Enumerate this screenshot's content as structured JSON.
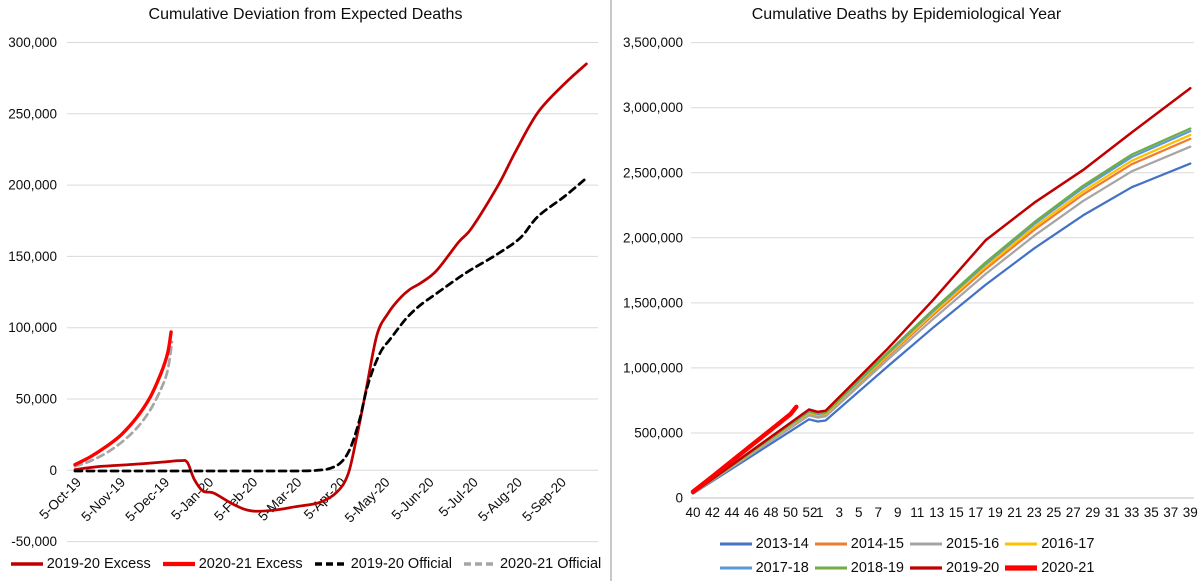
{
  "chart_data": [
    {
      "type": "line",
      "title": "Cumulative Deviation from Expected Deaths",
      "xlabel": "",
      "ylabel": "",
      "ylim": [
        -50000,
        300000
      ],
      "xlim_months_from_5_Oct_19": [
        0,
        11.6
      ],
      "grid": true,
      "legend_position": "bottom",
      "x_tick_labels": [
        "5-Oct-19",
        "5-Nov-19",
        "5-Dec-19",
        "5-Jan-20",
        "5-Feb-20",
        "5-Mar-20",
        "5-Apr-20",
        "5-May-20",
        "5-Jun-20",
        "5-Jul-20",
        "5-Aug-20",
        "5-Sep-20"
      ],
      "y_ticks": [
        {
          "label": "300,000",
          "value": 300000
        },
        {
          "label": "250,000",
          "value": 250000
        },
        {
          "label": "200,000",
          "value": 200000
        },
        {
          "label": "150,000",
          "value": 150000
        },
        {
          "label": "100,000",
          "value": 100000
        },
        {
          "label": "50,000",
          "value": 50000
        },
        {
          "label": "0",
          "value": 0
        },
        {
          "label": "-50,000",
          "value": -50000
        }
      ],
      "series": [
        {
          "name": "2019-20 Excess",
          "color": "#C00000",
          "width": 2.75,
          "dash": "",
          "smooth": true,
          "points": [
            [
              0,
              500
            ],
            [
              0.5,
              2500
            ],
            [
              1,
              3500
            ],
            [
              1.6,
              4800
            ],
            [
              2,
              5800
            ],
            [
              2.4,
              6800
            ],
            [
              2.55,
              5500
            ],
            [
              2.7,
              -6000
            ],
            [
              2.9,
              -14500
            ],
            [
              3.15,
              -16000
            ],
            [
              3.6,
              -24000
            ],
            [
              4,
              -28500
            ],
            [
              4.5,
              -28000
            ],
            [
              5,
              -25500
            ],
            [
              5.55,
              -22500
            ],
            [
              5.95,
              -15000
            ],
            [
              6.2,
              -2000
            ],
            [
              6.4,
              25000
            ],
            [
              6.6,
              56000
            ],
            [
              6.85,
              95000
            ],
            [
              7.1,
              110000
            ],
            [
              7.35,
              120000
            ],
            [
              7.6,
              127000
            ],
            [
              7.85,
              131500
            ],
            [
              8.2,
              140000
            ],
            [
              8.7,
              160000
            ],
            [
              9,
              170000
            ],
            [
              9.6,
              200000
            ],
            [
              10,
              224000
            ],
            [
              10.5,
              251000
            ],
            [
              11.1,
              271000
            ],
            [
              11.6,
              285000
            ]
          ]
        },
        {
          "name": "2020-21 Excess",
          "color": "#FF0000",
          "width": 3.4,
          "dash": "",
          "smooth": true,
          "points": [
            [
              0,
              4000
            ],
            [
              0.35,
              9500
            ],
            [
              0.7,
              16500
            ],
            [
              1.05,
              25000
            ],
            [
              1.4,
              37000
            ],
            [
              1.7,
              51000
            ],
            [
              1.95,
              68000
            ],
            [
              2.1,
              82000
            ],
            [
              2.18,
              97000
            ]
          ]
        },
        {
          "name": "2019-20 Official",
          "color": "#000000",
          "width": 2.75,
          "dash": "7 5",
          "smooth": true,
          "points": [
            [
              0,
              -500
            ],
            [
              1,
              -500
            ],
            [
              2,
              -500
            ],
            [
              3,
              -500
            ],
            [
              4,
              -500
            ],
            [
              5,
              -500
            ],
            [
              5.5,
              0
            ],
            [
              5.8,
              1500
            ],
            [
              6.05,
              6000
            ],
            [
              6.25,
              16000
            ],
            [
              6.45,
              35000
            ],
            [
              6.6,
              55000
            ],
            [
              6.75,
              70000
            ],
            [
              6.95,
              84000
            ],
            [
              7.15,
              92000
            ],
            [
              7.5,
              106000
            ],
            [
              7.8,
              115000
            ],
            [
              8.2,
              124000
            ],
            [
              8.7,
              135000
            ],
            [
              9,
              141000
            ],
            [
              9.6,
              152000
            ],
            [
              10.1,
              163000
            ],
            [
              10.5,
              178000
            ],
            [
              11.1,
              192000
            ],
            [
              11.6,
              205000
            ]
          ]
        },
        {
          "name": "2020-21 Official",
          "color": "#A6A6A6",
          "width": 2.75,
          "dash": "7 5",
          "smooth": true,
          "points": [
            [
              0,
              2800
            ],
            [
              0.35,
              6500
            ],
            [
              0.7,
              12000
            ],
            [
              1.05,
              19500
            ],
            [
              1.4,
              29500
            ],
            [
              1.7,
              42000
            ],
            [
              1.95,
              57000
            ],
            [
              2.1,
              70000
            ],
            [
              2.2,
              90000
            ]
          ]
        }
      ]
    },
    {
      "type": "line",
      "title": "Cumulative Deaths by Epidemiological Year",
      "xlabel": "",
      "ylabel": "",
      "ylim": [
        0,
        3500000
      ],
      "x_axis_weeks": "epidemiological weeks 40 through 39",
      "grid": true,
      "legend_position": "bottom",
      "x_tick_labels": [
        "40",
        "42",
        "44",
        "46",
        "48",
        "50",
        "52",
        "1",
        "3",
        "5",
        "7",
        "9",
        "11",
        "13",
        "15",
        "17",
        "19",
        "21",
        "23",
        "25",
        "27",
        "29",
        "31",
        "33",
        "35",
        "37",
        "39"
      ],
      "x_tick_positions": [
        0,
        2,
        4,
        6,
        8,
        10,
        12,
        13,
        15,
        17,
        19,
        21,
        23,
        25,
        27,
        29,
        31,
        33,
        35,
        37,
        39,
        41,
        43,
        45,
        47,
        49,
        51
      ],
      "y_ticks": [
        {
          "label": "3,500,000",
          "value": 3500000
        },
        {
          "label": "3,000,000",
          "value": 3000000
        },
        {
          "label": "2,500,000",
          "value": 2500000
        },
        {
          "label": "2,000,000",
          "value": 2000000
        },
        {
          "label": "1,500,000",
          "value": 1500000
        },
        {
          "label": "1,000,000",
          "value": 1000000
        },
        {
          "label": "500,000",
          "value": 500000
        },
        {
          "label": "0",
          "value": 0
        }
      ],
      "series": [
        {
          "name": "2013-14",
          "color": "#4472C4",
          "width": 2.25,
          "dash": "",
          "smooth": false,
          "points": [
            [
              0,
              34000
            ],
            [
              11.9,
              605000
            ],
            [
              12.8,
              588000
            ],
            [
              13.6,
              596000
            ],
            [
              20,
              1014000
            ],
            [
              24.6,
              1308000
            ],
            [
              30,
              1638000
            ],
            [
              35,
              1919000
            ],
            [
              40,
              2172000
            ],
            [
              45,
              2389000
            ],
            [
              51,
              2570000
            ]
          ]
        },
        {
          "name": "2014-15",
          "color": "#ED7D31",
          "width": 2.25,
          "dash": "",
          "smooth": false,
          "points": [
            [
              0,
              36000
            ],
            [
              11.9,
              649000
            ],
            [
              12.8,
              632000
            ],
            [
              13.6,
              641000
            ],
            [
              20,
              1089000
            ],
            [
              24.6,
              1405000
            ],
            [
              30,
              1759000
            ],
            [
              35,
              2061000
            ],
            [
              40,
              2333000
            ],
            [
              45,
              2566000
            ],
            [
              51,
              2760000
            ]
          ]
        },
        {
          "name": "2015-16",
          "color": "#A5A5A5",
          "width": 2.25,
          "dash": "",
          "smooth": false,
          "points": [
            [
              0,
              36000
            ],
            [
              11.9,
              635000
            ],
            [
              12.8,
              618000
            ],
            [
              13.6,
              627000
            ],
            [
              20,
              1065000
            ],
            [
              24.6,
              1374000
            ],
            [
              30,
              1721000
            ],
            [
              35,
              2016000
            ],
            [
              40,
              2282000
            ],
            [
              45,
              2511000
            ],
            [
              51,
              2700000
            ]
          ]
        },
        {
          "name": "2016-17",
          "color": "#FFC000",
          "width": 2.25,
          "dash": "",
          "smooth": false,
          "points": [
            [
              0,
              37000
            ],
            [
              11.9,
              656000
            ],
            [
              12.8,
              638000
            ],
            [
              13.6,
              647000
            ],
            [
              20,
              1100000
            ],
            [
              24.6,
              1419000
            ],
            [
              30,
              1778000
            ],
            [
              35,
              2082000
            ],
            [
              40,
              2357000
            ],
            [
              45,
              2593000
            ],
            [
              51,
              2790000
            ]
          ]
        },
        {
          "name": "2017-18",
          "color": "#5B9BD5",
          "width": 2.25,
          "dash": "",
          "smooth": false,
          "points": [
            [
              0,
              37000
            ],
            [
              11.9,
              663000
            ],
            [
              12.8,
              645000
            ],
            [
              13.6,
              654000
            ],
            [
              20,
              1112000
            ],
            [
              24.6,
              1435000
            ],
            [
              30,
              1797000
            ],
            [
              35,
              2105000
            ],
            [
              40,
              2383000
            ],
            [
              45,
              2621000
            ],
            [
              51,
              2820000
            ]
          ]
        },
        {
          "name": "2018-19",
          "color": "#70AD47",
          "width": 2.25,
          "dash": "",
          "smooth": false,
          "points": [
            [
              0,
              38000
            ],
            [
              11.9,
              668000
            ],
            [
              12.8,
              650000
            ],
            [
              13.6,
              659000
            ],
            [
              20,
              1120000
            ],
            [
              24.6,
              1445000
            ],
            [
              30,
              1810000
            ],
            [
              35,
              2120000
            ],
            [
              40,
              2400000
            ],
            [
              45,
              2640000
            ],
            [
              51,
              2840000
            ]
          ]
        },
        {
          "name": "2019-20",
          "color": "#C00000",
          "width": 2.5,
          "dash": "",
          "smooth": false,
          "points": [
            [
              0,
              39000
            ],
            [
              11.9,
              680000
            ],
            [
              12.8,
              662000
            ],
            [
              13.6,
              670000
            ],
            [
              20,
              1150000
            ],
            [
              24.6,
              1520000
            ],
            [
              30,
              1980000
            ],
            [
              35,
              2270000
            ],
            [
              40,
              2520000
            ],
            [
              45,
              2810000
            ],
            [
              51,
              3150000
            ]
          ]
        },
        {
          "name": "2020-21",
          "color": "#FF0000",
          "width": 4.5,
          "dash": "",
          "smooth": false,
          "points": [
            [
              0,
              48000
            ],
            [
              2,
              165000
            ],
            [
              4,
              285000
            ],
            [
              6,
              405000
            ],
            [
              8,
              525000
            ],
            [
              10,
              645000
            ],
            [
              10.6,
              700000
            ]
          ]
        }
      ]
    }
  ],
  "colors": {
    "gridline": "#D9D9D9",
    "axis_line": "#BFBFBF",
    "text": "#0d0d0d",
    "divider": "#C9C7C7"
  }
}
